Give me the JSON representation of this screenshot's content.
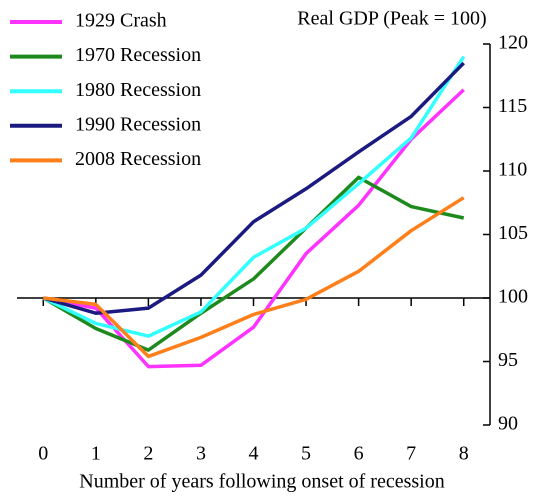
{
  "chart_data": {
    "type": "line",
    "title": "Real GDP (Peak = 100)",
    "x_label": "Number of years following onset of recession",
    "x": [
      0,
      1,
      2,
      3,
      4,
      5,
      6,
      7,
      8
    ],
    "xlim": [
      -0.5,
      8.5
    ],
    "xticks": [
      0,
      1,
      2,
      3,
      4,
      5,
      6,
      7,
      8
    ],
    "ylim": [
      90,
      120
    ],
    "yticks": [
      90,
      95,
      100,
      105,
      110,
      115,
      120
    ],
    "x_axis_at": 100,
    "legend": "upper left",
    "series": [
      {
        "name": "1929 Crash",
        "color": "#ff33ff",
        "values": [
          100,
          99.2,
          94.6,
          94.7,
          97.7,
          103.5,
          107.3,
          112.5,
          116.4
        ]
      },
      {
        "name": "1970 Recession",
        "color": "#1e8a1e",
        "values": [
          100,
          97.6,
          95.9,
          98.8,
          101.5,
          105.5,
          109.5,
          107.2,
          106.3
        ]
      },
      {
        "name": "1980 Recession",
        "color": "#33ffff",
        "values": [
          100,
          98.0,
          97.0,
          98.9,
          103.2,
          105.5,
          109.0,
          112.6,
          119.0
        ]
      },
      {
        "name": "1990 Recession",
        "color": "#1a1a80",
        "values": [
          100,
          98.8,
          99.2,
          101.8,
          106.0,
          108.6,
          111.5,
          114.3,
          118.5
        ]
      },
      {
        "name": "2008 Recession",
        "color": "#ff7f1a",
        "values": [
          100,
          99.5,
          95.4,
          96.9,
          98.7,
          99.9,
          102.1,
          105.3,
          107.9
        ]
      }
    ]
  }
}
